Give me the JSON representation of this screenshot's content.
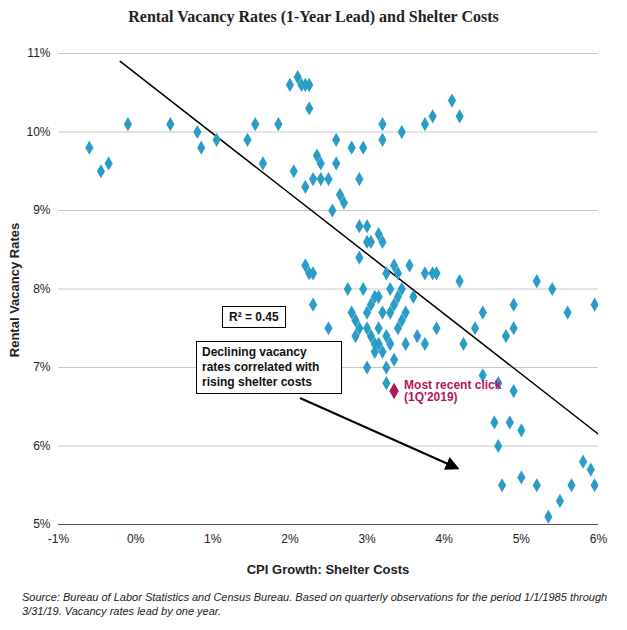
{
  "chart_data": {
    "type": "scatter",
    "title": "Rental Vacancy Rates (1-Year Lead) and Shelter Costs",
    "x_label": "CPI Growth: Shelter Costs",
    "y_label": "Rental Vacancy Rates",
    "xlim": [
      -1,
      6
    ],
    "xticks": [
      {
        "value": -1,
        "label": "-1%"
      },
      {
        "value": 0,
        "label": "0%"
      },
      {
        "value": 1,
        "label": "1%"
      },
      {
        "value": 2,
        "label": "2%"
      },
      {
        "value": 3,
        "label": "3%"
      },
      {
        "value": 4,
        "label": "4%"
      },
      {
        "value": 5,
        "label": "5%"
      },
      {
        "value": 6,
        "label": "6%"
      }
    ],
    "ylim": [
      5,
      11
    ],
    "yticks": [
      {
        "value": 5,
        "label": "5%"
      },
      {
        "value": 6,
        "label": "6%"
      },
      {
        "value": 7,
        "label": "7%"
      },
      {
        "value": 8,
        "label": "8%"
      },
      {
        "value": 9,
        "label": "9%"
      },
      {
        "value": 10,
        "label": "10%"
      },
      {
        "value": 11,
        "label": "11%"
      }
    ],
    "grid": "y",
    "color": "#2a9dc6",
    "marker": "diamond",
    "x": [
      -0.6,
      -0.45,
      -0.35,
      -0.1,
      0.45,
      0.8,
      0.85,
      1.05,
      1.45,
      1.55,
      1.65,
      1.85,
      2.0,
      2.1,
      2.15,
      2.2,
      2.25,
      2.25,
      2.05,
      2.2,
      2.3,
      2.35,
      2.4,
      2.4,
      2.5,
      2.55,
      2.6,
      2.6,
      2.65,
      2.7,
      2.8,
      2.9,
      2.95,
      3.2,
      3.2,
      3.45,
      3.75,
      3.85,
      4.1,
      4.2,
      2.2,
      2.25,
      2.3,
      2.3,
      2.5,
      2.75,
      2.8,
      2.85,
      2.9,
      2.9,
      2.95,
      3.0,
      3.0,
      3.0,
      3.0,
      3.05,
      3.05,
      3.05,
      3.1,
      3.1,
      3.15,
      3.15,
      3.15,
      3.15,
      3.2,
      3.2,
      3.2,
      3.25,
      3.25,
      3.25,
      3.25,
      3.3,
      3.3,
      3.3,
      3.35,
      3.35,
      3.35,
      3.4,
      3.4,
      3.4,
      3.45,
      3.45,
      3.5,
      3.5,
      3.55,
      3.6,
      3.65,
      3.75,
      3.75,
      3.85,
      3.9,
      3.9,
      4.2,
      4.25,
      4.4,
      4.5,
      4.5,
      4.65,
      4.7,
      4.75,
      4.7,
      4.8,
      4.9,
      4.9,
      4.9,
      4.85,
      5.0,
      5.0,
      5.2,
      5.2,
      5.35,
      5.4,
      5.5,
      5.6,
      5.65,
      5.8,
      5.9,
      5.95,
      5.95,
      2.85,
      2.9,
      3.0,
      3.1
    ],
    "y": [
      9.8,
      9.5,
      9.6,
      10.1,
      10.1,
      10.0,
      9.8,
      9.9,
      9.9,
      10.1,
      9.6,
      10.1,
      10.6,
      10.7,
      10.6,
      10.6,
      10.6,
      10.3,
      9.5,
      9.3,
      9.4,
      9.7,
      9.6,
      9.4,
      9.4,
      9.0,
      9.6,
      9.9,
      9.2,
      9.1,
      9.8,
      9.4,
      9.8,
      10.1,
      9.9,
      10.0,
      10.1,
      10.2,
      10.4,
      10.2,
      8.3,
      8.2,
      8.2,
      7.8,
      7.5,
      8.0,
      7.7,
      7.6,
      8.8,
      8.4,
      8.0,
      8.8,
      8.6,
      7.5,
      7.0,
      8.6,
      7.8,
      7.4,
      7.9,
      7.2,
      8.7,
      7.9,
      7.5,
      7.3,
      8.6,
      7.7,
      7.2,
      8.2,
      7.4,
      7.0,
      6.8,
      8.0,
      7.7,
      7.3,
      8.3,
      7.8,
      7.1,
      8.2,
      7.9,
      7.5,
      8.0,
      7.6,
      7.7,
      7.3,
      8.3,
      7.9,
      7.4,
      8.2,
      7.3,
      8.2,
      8.2,
      7.5,
      8.1,
      7.3,
      7.5,
      7.7,
      6.9,
      6.3,
      6.8,
      5.5,
      6.0,
      7.4,
      7.8,
      7.5,
      6.7,
      6.3,
      6.2,
      5.6,
      5.5,
      8.1,
      5.1,
      8.0,
      5.3,
      7.7,
      5.5,
      5.8,
      5.7,
      5.5,
      7.8,
      7.4,
      7.5,
      7.7,
      7.3
    ],
    "trend_line": {
      "x": [
        -0.2,
        6
      ],
      "y": [
        10.9,
        6.15
      ],
      "color": "#000000"
    },
    "highlight": {
      "label": "Most recent click (1Q'2019)",
      "x": 3.35,
      "y": 6.7,
      "color": "#b0185c"
    },
    "annotations": [
      "R² = 0.45",
      "Declining vacancy rates correlated with rising shelter costs"
    ],
    "source": "Source: Bureau of Labor Statistics and Census Bureau. Based on quarterly observations for the period 1/1/1985 through 3/31/19. Vacancy rates lead by one year."
  }
}
